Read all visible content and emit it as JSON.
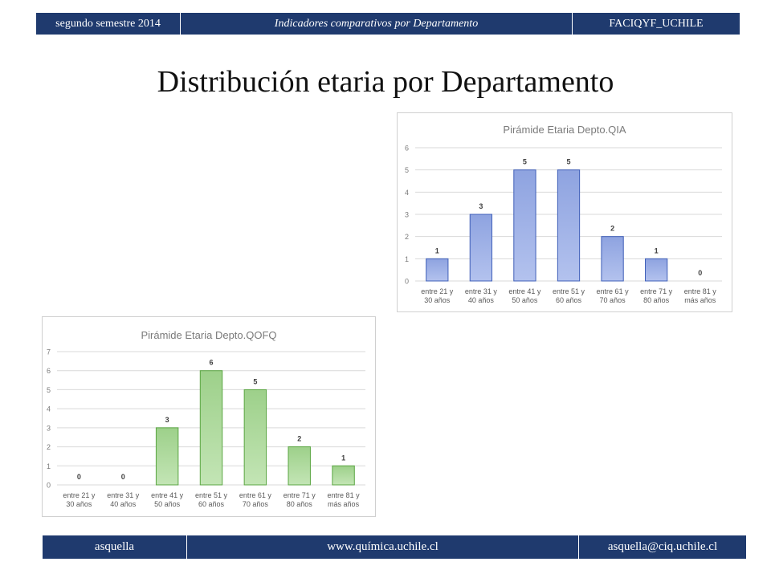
{
  "header": {
    "left": "segundo semestre 2014",
    "center": "Indicadores comparativos por Departamento",
    "right": "FACIQYF_UCHILE"
  },
  "title": "Distribución etaria por Departamento",
  "footer": {
    "left": "asquella",
    "center": "www.química.uchile.cl",
    "right": "asquella@ciq.uchile.cl"
  },
  "chart_data": [
    {
      "type": "bar",
      "title": "Pirámide Etaria Depto.QIA",
      "categories": [
        "entre 21 y 30 años",
        "entre 31 y 40 años",
        "entre 41 y 50 años",
        "entre 51 y 60 años",
        "entre 61 y 70 años",
        "entre 71 y 80 años",
        "entre 81 y más años"
      ],
      "category_lines": [
        [
          "entre 21 y",
          "30 años"
        ],
        [
          "entre 31 y",
          "40 años"
        ],
        [
          "entre 41 y",
          "50 años"
        ],
        [
          "entre 51 y",
          "60 años"
        ],
        [
          "entre 61 y",
          "70 años"
        ],
        [
          "entre 71 y",
          "80 años"
        ],
        [
          "entre 81 y",
          "más años"
        ]
      ],
      "values": [
        1,
        3,
        5,
        5,
        2,
        1,
        0
      ],
      "ylim": [
        0,
        6
      ],
      "yticks": [
        0,
        1,
        2,
        3,
        4,
        5,
        6
      ],
      "grid": true,
      "data_labels": true,
      "fill": "#8ea3e0",
      "fill_light": "#b3c2ee",
      "stroke": "#3f5fb8"
    },
    {
      "type": "bar",
      "title": "Pirámide Etaria Depto.QOFQ",
      "categories": [
        "entre 21 y 30 años",
        "entre 31 y 40 años",
        "entre 41 y 50 años",
        "entre 51 y 60 años",
        "entre 61 y 70 años",
        "entre 71 y 80 años",
        "entre 81 y más años"
      ],
      "category_lines": [
        [
          "entre 21 y",
          "30 años"
        ],
        [
          "entre 31 y",
          "40 años"
        ],
        [
          "entre 41 y",
          "50 años"
        ],
        [
          "entre 51 y",
          "60 años"
        ],
        [
          "entre 61 y",
          "70 años"
        ],
        [
          "entre 71 y",
          "80 años"
        ],
        [
          "entre 81 y",
          "más años"
        ]
      ],
      "values": [
        0,
        0,
        3,
        6,
        5,
        2,
        1
      ],
      "ylim": [
        0,
        7
      ],
      "yticks": [
        0,
        1,
        2,
        3,
        4,
        5,
        6,
        7
      ],
      "grid": true,
      "data_labels": true,
      "fill": "#9dd08a",
      "fill_light": "#c3e5b5",
      "stroke": "#5aa642"
    }
  ]
}
